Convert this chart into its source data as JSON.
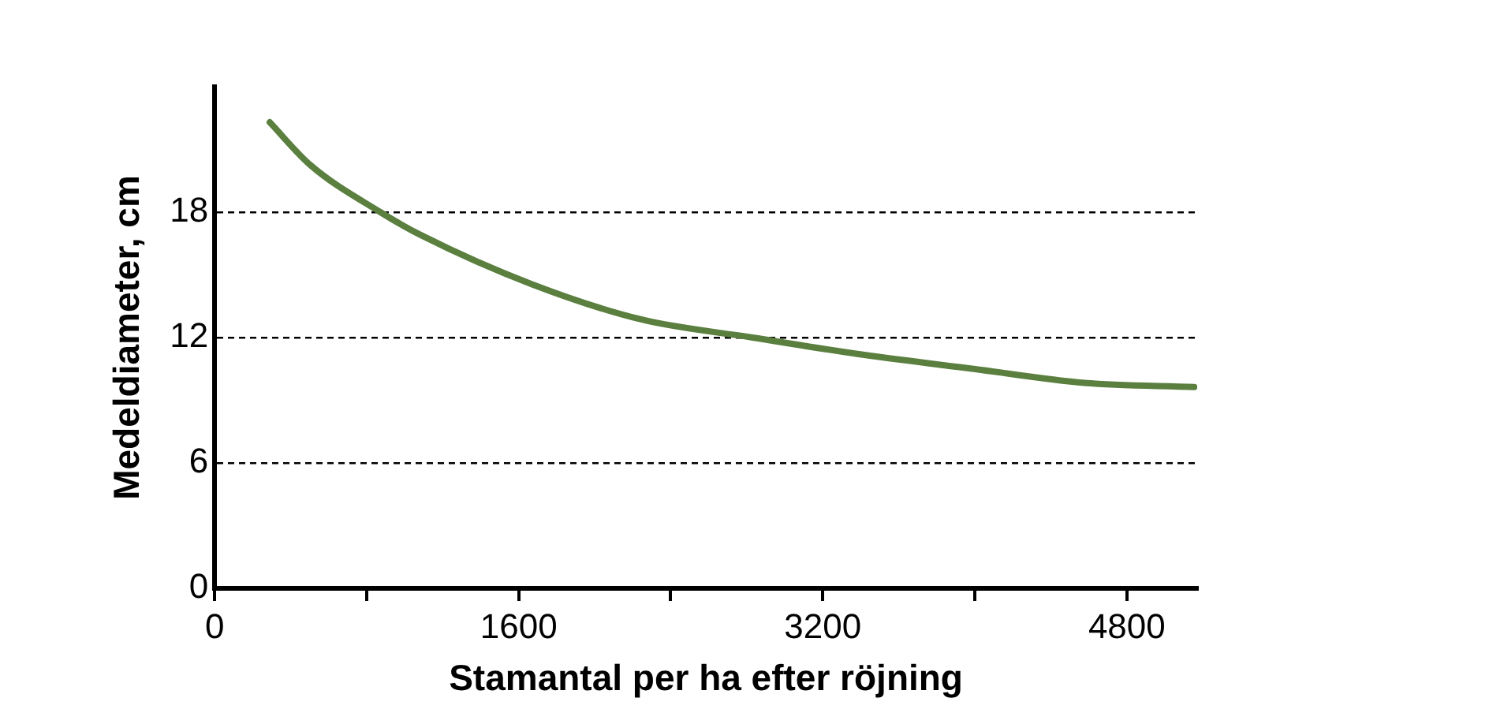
{
  "chart_data": {
    "type": "line",
    "xlabel": "Stamantal per ha efter röjning",
    "ylabel": "Medeldiameter, cm",
    "x": [
      290,
      503,
      872,
      1086,
      1670,
      2248,
      2830,
      3412,
      3994,
      4577,
      5155
    ],
    "series": [
      {
        "color": "#5a7f3f",
        "values": [
          22.3,
          20.26,
          18,
          16.9,
          14.55,
          12.86,
          12,
          11.18,
          10.5,
          9.83,
          9.63
        ]
      }
    ],
    "xlim": [
      0,
      5170
    ],
    "xticks": [
      0,
      {
        "value": 800,
        "label": null
      },
      1600,
      {
        "value": 2400,
        "label": null
      },
      3200,
      {
        "value": 4000,
        "label": null
      },
      4800
    ],
    "ylim": [
      0,
      24
    ],
    "yticks": [
      0,
      6,
      12,
      18
    ],
    "grid": "y",
    "legend": false,
    "marker": "none",
    "line_style": "solid"
  }
}
